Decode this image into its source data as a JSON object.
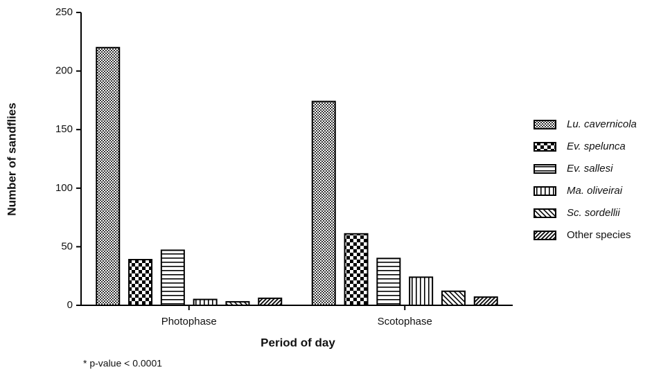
{
  "chart_data": {
    "type": "bar",
    "xlabel": "Period of day",
    "ylabel": "Number of sandflies",
    "annotation": "* p-value < 0.0001",
    "categories": [
      "Photophase",
      "Scotophase"
    ],
    "series": [
      {
        "name": "Lu. cavernicola",
        "pattern": "fine-check",
        "color": "#000000",
        "values": [
          220,
          174
        ]
      },
      {
        "name": "Ev. spelunca",
        "pattern": "checker",
        "color": "#000000",
        "values": [
          39,
          61
        ]
      },
      {
        "name": "Ev. sallesi",
        "pattern": "horizontal",
        "color": "#000000",
        "values": [
          47,
          40
        ]
      },
      {
        "name": "Ma. oliveirai",
        "pattern": "vertical",
        "color": "#000000",
        "values": [
          5,
          24
        ]
      },
      {
        "name": "Sc. sordellii",
        "pattern": "diagonal",
        "color": "#000000",
        "values": [
          3,
          12
        ]
      },
      {
        "name": "Other species",
        "pattern": "diagonal-dense",
        "color": "#000000",
        "values": [
          6,
          7
        ]
      }
    ],
    "ylim": [
      0,
      250
    ],
    "yticks": [
      0,
      50,
      100,
      150,
      200,
      250
    ]
  }
}
